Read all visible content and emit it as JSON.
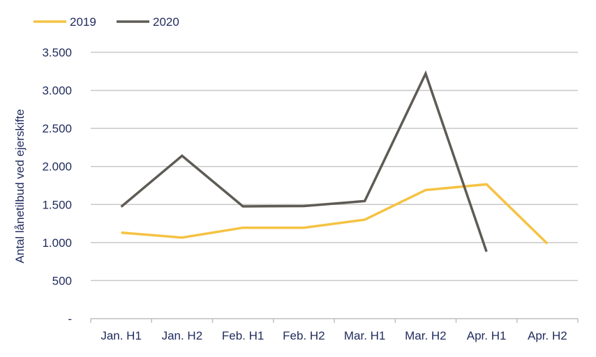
{
  "chart_data": {
    "type": "line",
    "categories": [
      "Jan. H1",
      "Jan. H2",
      "Feb. H1",
      "Feb. H2",
      "Mar. H1",
      "Mar. H2",
      "Apr. H1",
      "Apr. H2"
    ],
    "series": [
      {
        "name": "2019",
        "color": "#f5c242",
        "values": [
          1130,
          1065,
          1195,
          1195,
          1300,
          1690,
          1765,
          985
        ]
      },
      {
        "name": "2020",
        "color": "#5e5b55",
        "values": [
          1470,
          2140,
          1475,
          1480,
          1545,
          3220,
          880,
          null
        ]
      }
    ],
    "ylabel": "Antal lånetilbud ved ejerskifte",
    "xlabel": "",
    "ylim": [
      0,
      3500
    ],
    "yticks": [
      0,
      500,
      1000,
      1500,
      2000,
      2500,
      3000,
      3500
    ],
    "ytick_labels": [
      "-",
      "500",
      "1.000",
      "1.500",
      "2.000",
      "2.500",
      "3.000",
      "3.500"
    ],
    "grid": true,
    "legend_position": "top-left"
  }
}
